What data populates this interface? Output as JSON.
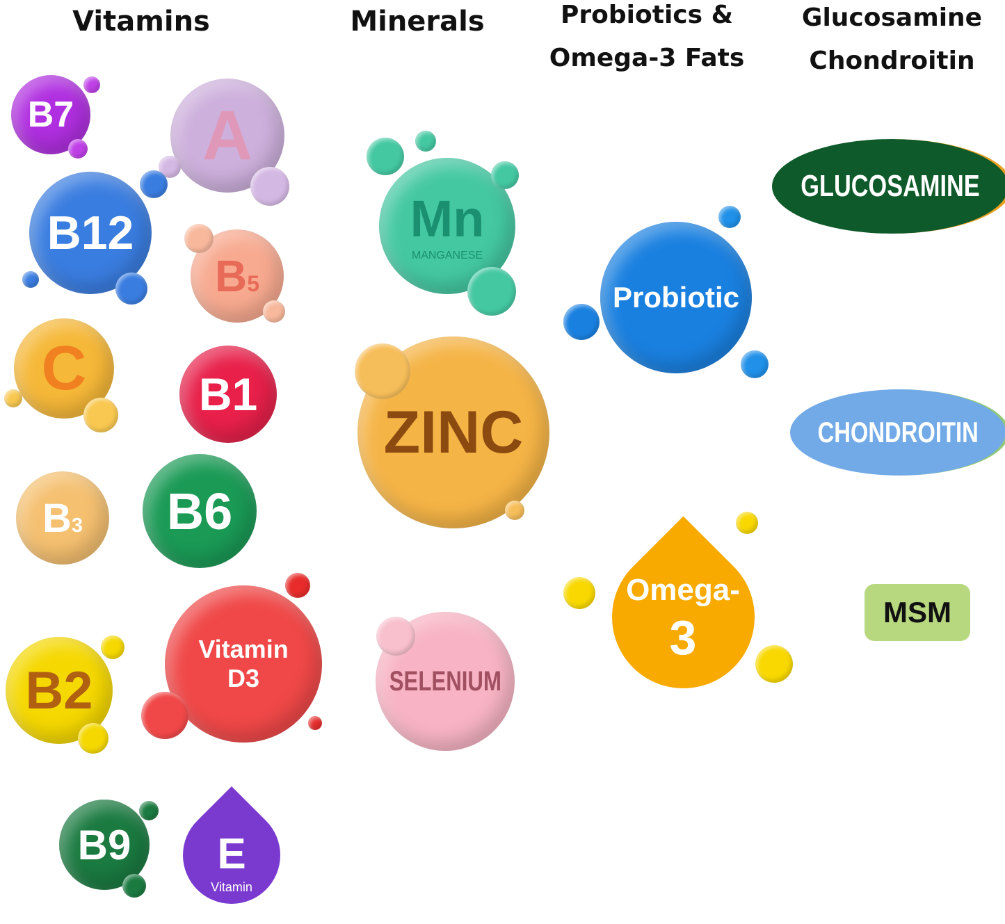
{
  "headers": {
    "vitamins": "Vitamins",
    "minerals": "Minerals",
    "probiotics_line1": "Probiotics &",
    "probiotics_line2": "Omega-3 Fats",
    "glucosamine_line1": "Glucosamine",
    "glucosamine_line2": "Chondroitin"
  },
  "vitamins": {
    "b7": "B7",
    "a": "A",
    "b12": "B12",
    "b5": "B",
    "b5_sub": "5",
    "c": "C",
    "b1": "B1",
    "b3": "B",
    "b3_sub": "3",
    "b6": "B6",
    "b2": "B2",
    "d3_line1": "Vitamin",
    "d3_line2": "D3",
    "b9": "B9",
    "e": "E",
    "e_label": "Vitamin"
  },
  "minerals": {
    "mn": "Mn",
    "mn_label": "MANGANESE",
    "zinc": "ZINC",
    "selenium": "SELENIUM"
  },
  "probiotics": {
    "probiotic": "Probiotic",
    "omega_line1": "Omega-",
    "omega_line2": "3"
  },
  "joint": {
    "glucosamine": "GLUCOSAMINE",
    "chondroitin": "CHONDROITIN",
    "msm": "MSM"
  },
  "colors": {
    "vitamin_b7": "#b02fe0",
    "vitamin_b12": "#3a7de0",
    "vitamin_b1": "#e8204a",
    "vitamin_b6": "#1a9a55",
    "vitamin_d3": "#f04848",
    "zinc": "#f5b040",
    "probiotic": "#1a80e0",
    "omega3": "#f8a800",
    "glucosamine": "#0e5a2a",
    "chondroitin": "#70a8e8",
    "msm": "#b8d880"
  }
}
